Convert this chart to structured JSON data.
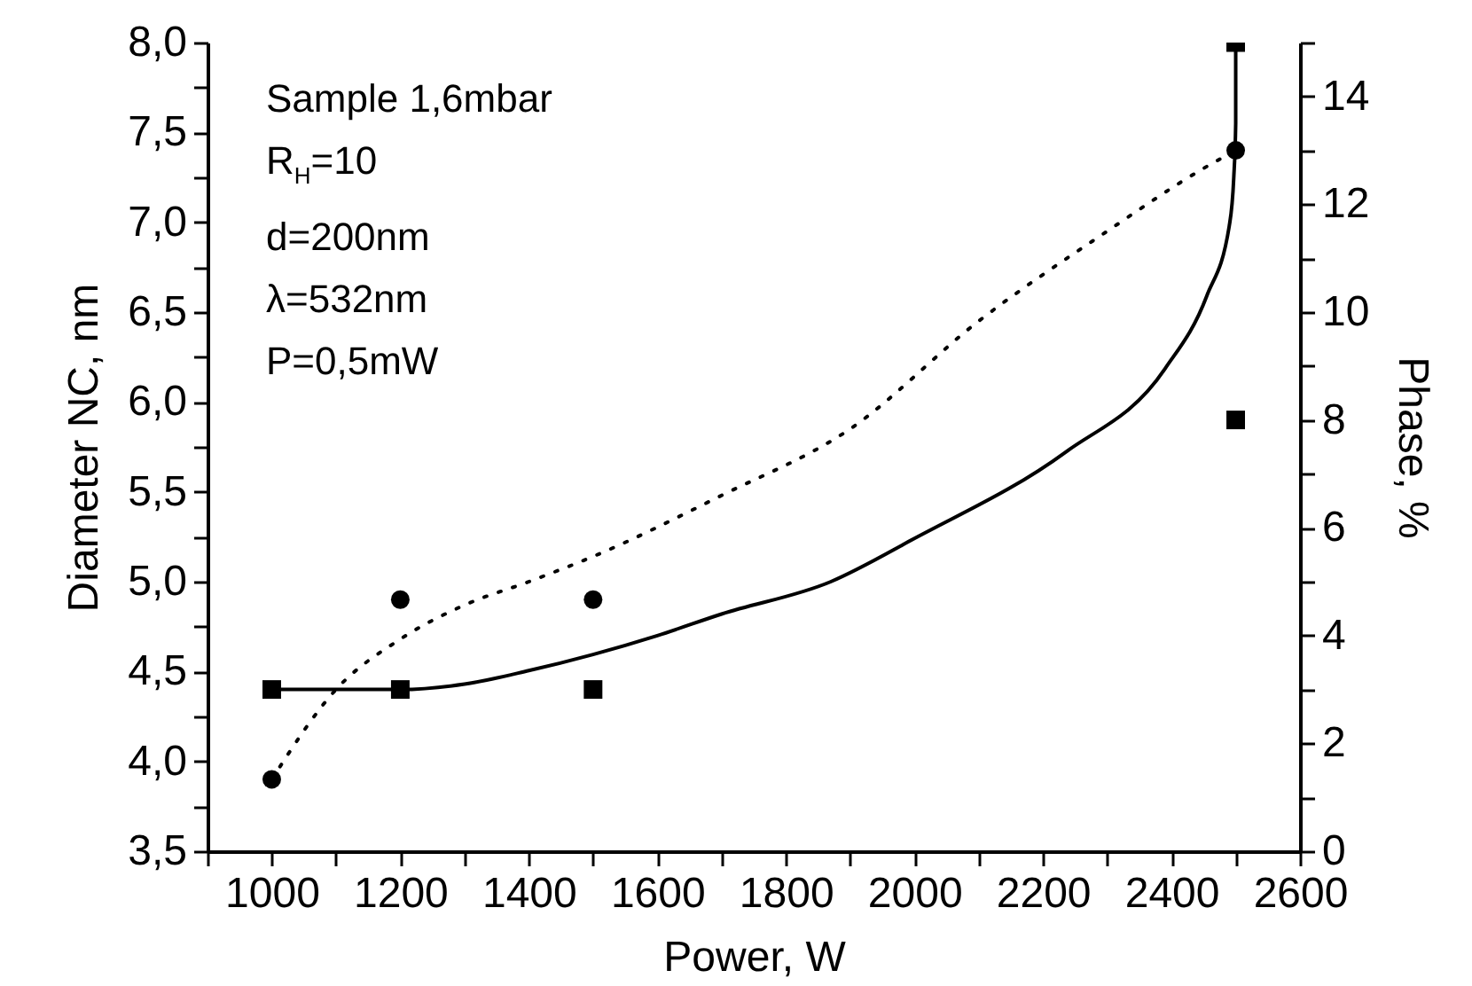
{
  "chart_data": {
    "type": "scatter",
    "xlabel": "Power, W",
    "ylabel": "Diameter NC, nm",
    "y2label": "Phase, %",
    "annotations": [
      "Sample 1,6mbar",
      "R$_{H}$=10",
      "d=200nm",
      "λ=532nm",
      "P=0,5mW"
    ],
    "xlim": [
      900,
      2600
    ],
    "xticks": [
      {
        "value": 900,
        "label": null
      },
      1000,
      {
        "value": 1100,
        "label": null
      },
      1200,
      {
        "value": 1300,
        "label": null
      },
      1400,
      {
        "value": 1500,
        "label": null
      },
      1600,
      {
        "value": 1700,
        "label": null
      },
      1800,
      {
        "value": 1900,
        "label": null
      },
      2000,
      {
        "value": 2100,
        "label": null
      },
      2200,
      {
        "value": 2300,
        "label": null
      },
      2400,
      {
        "value": 2500,
        "label": null
      },
      2600
    ],
    "ylim": [
      3.5,
      8.0
    ],
    "yticks": [
      {
        "value": 3.5,
        "label": "3,5"
      },
      {
        "value": 3.75,
        "label": null
      },
      {
        "value": 4.0,
        "label": "4,0"
      },
      {
        "value": 4.25,
        "label": null
      },
      {
        "value": 4.5,
        "label": "4,5"
      },
      {
        "value": 4.75,
        "label": null
      },
      {
        "value": 5.0,
        "label": "5,0"
      },
      {
        "value": 5.25,
        "label": null
      },
      {
        "value": 5.5,
        "label": "5,5"
      },
      {
        "value": 5.75,
        "label": null
      },
      {
        "value": 6.0,
        "label": "6,0"
      },
      {
        "value": 6.25,
        "label": null
      },
      {
        "value": 6.5,
        "label": "6,5"
      },
      {
        "value": 6.75,
        "label": null
      },
      {
        "value": 7.0,
        "label": "7,0"
      },
      {
        "value": 7.25,
        "label": null
      },
      {
        "value": 7.5,
        "label": "7,5"
      },
      {
        "value": 7.75,
        "label": null
      },
      {
        "value": 8.0,
        "label": "8,0"
      }
    ],
    "y2lim": [
      0,
      15
    ],
    "y2ticks": [
      0,
      {
        "value": 1,
        "label": null
      },
      2,
      {
        "value": 3,
        "label": null
      },
      4,
      {
        "value": 5,
        "label": null
      },
      6,
      {
        "value": 7,
        "label": null
      },
      8,
      {
        "value": 9,
        "label": null
      },
      10,
      {
        "value": 11,
        "label": null
      },
      12,
      {
        "value": 13,
        "label": null
      },
      14,
      {
        "value": 15,
        "label": null
      }
    ],
    "grid": false,
    "series": [
      {
        "marker": "circle",
        "color": "#000000",
        "x": [
          1000,
          1200,
          1500,
          2500
        ],
        "values": [
          3.9,
          4.9,
          4.9,
          7.4
        ]
      },
      {
        "marker": "square",
        "color": "#000000",
        "axis": "y2",
        "x": [
          1000,
          1200,
          1500,
          2500,
          2500
        ],
        "values": [
          3,
          3,
          3,
          8,
          15
        ]
      },
      {
        "type": "line",
        "line_style": "dotted",
        "color": "#000000",
        "x": [
          1000,
          1100,
          1200,
          1300,
          1400,
          1500,
          1700,
          1900,
          2100,
          2300,
          2450,
          2500
        ],
        "values": [
          3.9,
          4.4,
          4.68,
          4.87,
          5.0,
          5.14,
          5.48,
          5.85,
          6.45,
          6.95,
          7.3,
          7.4
        ]
      },
      {
        "type": "line",
        "line_style": "solid",
        "color": "#000000",
        "axis": "y2",
        "x": [
          1000,
          1200,
          1300,
          1400,
          1500,
          1600,
          1700,
          1870,
          2000,
          2235,
          2390,
          2455,
          2490,
          2497,
          2500,
          2500
        ],
        "values": [
          3,
          3,
          3.1,
          3.35,
          3.65,
          4.0,
          4.4,
          5.0,
          5.8,
          7.4,
          8.95,
          10.3,
          11.6,
          12.5,
          13.5,
          15
        ]
      }
    ]
  }
}
